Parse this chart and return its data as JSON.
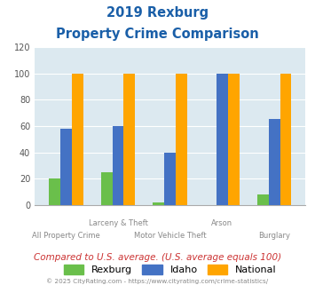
{
  "title_line1": "2019 Rexburg",
  "title_line2": "Property Crime Comparison",
  "rexburg": [
    20,
    25,
    2,
    0,
    8
  ],
  "idaho": [
    58,
    60,
    40,
    100,
    65
  ],
  "national": [
    100,
    100,
    100,
    100,
    100
  ],
  "rexburg_color": "#6abf4b",
  "idaho_color": "#4472c4",
  "national_color": "#ffa500",
  "ylim": [
    0,
    120
  ],
  "yticks": [
    0,
    20,
    40,
    60,
    80,
    100,
    120
  ],
  "title_color": "#1a5fa8",
  "plot_bg": "#dce9f0",
  "footer_text": "© 2025 CityRating.com - https://www.cityrating.com/crime-statistics/",
  "note_text": "Compared to U.S. average. (U.S. average equals 100)",
  "note_color": "#cc3333",
  "footer_color": "#888888",
  "bar_width": 0.22
}
